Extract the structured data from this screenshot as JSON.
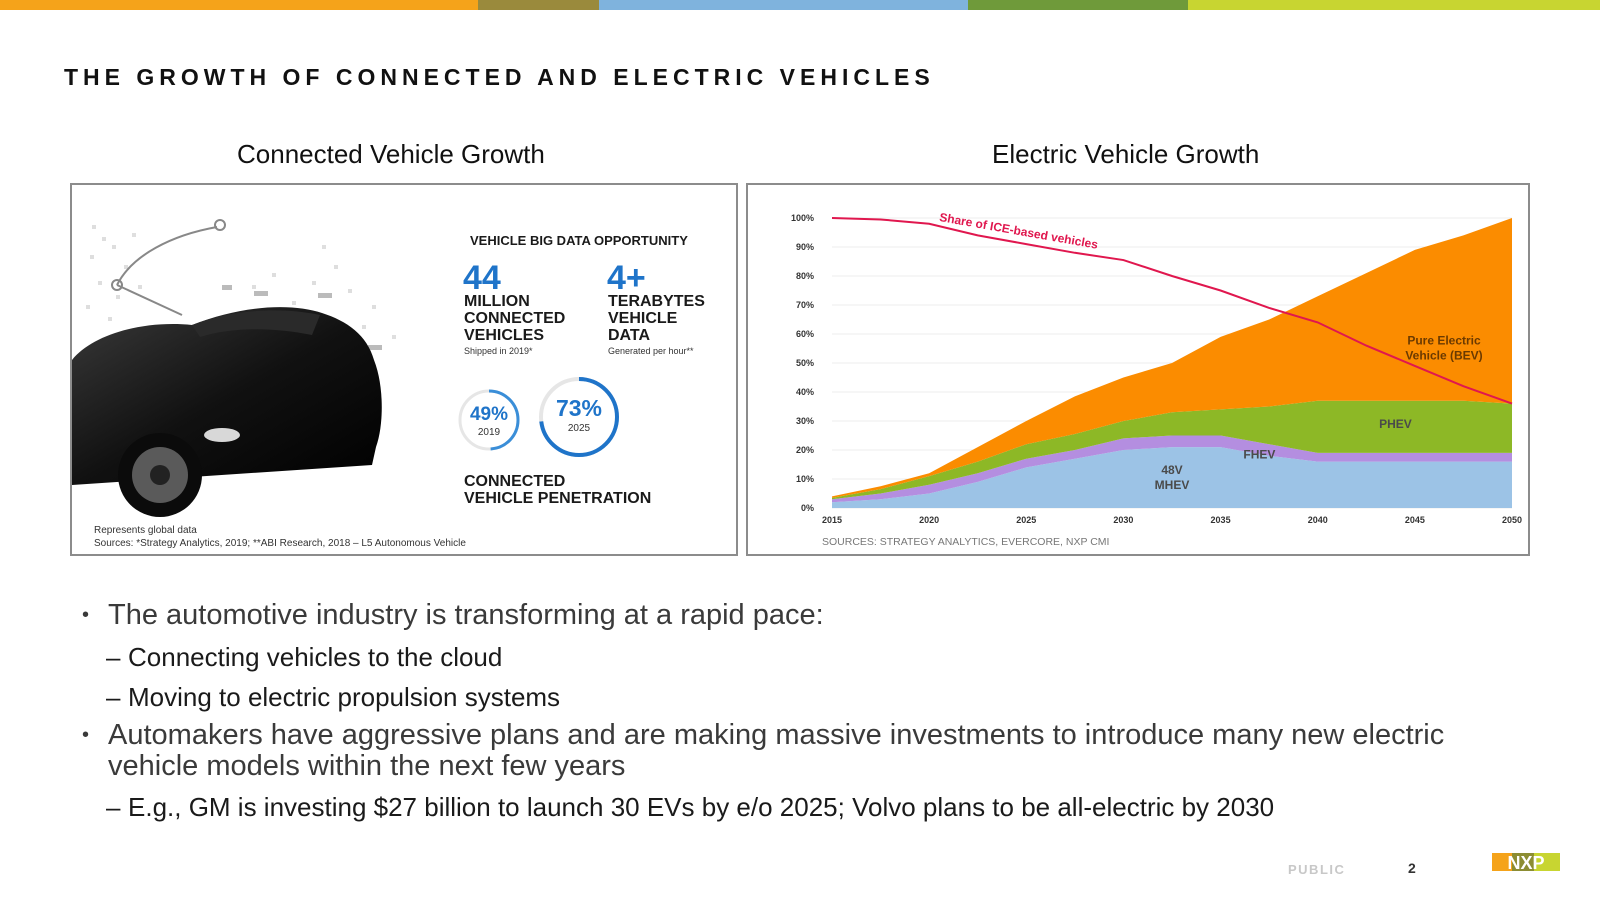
{
  "slide": {
    "title": "THE GROWTH OF CONNECTED AND ELECTRIC VEHICLES",
    "accent_colors": [
      "#f5a31a",
      "#9a8a3c",
      "#7fb3dd",
      "#6f9a3a",
      "#c8d531"
    ],
    "public_label": "PUBLIC",
    "page_number": "2",
    "logo_text": "NXP"
  },
  "left_panel": {
    "heading": "Connected Vehicle Growth",
    "image": "car-with-data-graphics",
    "big_data_heading": "VEHICLE BIG DATA OPPORTUNITY",
    "stat1": {
      "number": "44",
      "label_lines": [
        "MILLION",
        "CONNECTED",
        "VEHICLES"
      ],
      "note": "Shipped in 2019*"
    },
    "stat2": {
      "number": "4+",
      "label_lines": [
        "TERABYTES",
        "VEHICLE",
        "DATA"
      ],
      "note": "Generated per hour**"
    },
    "ring1": {
      "percent": "49%",
      "year": "2019",
      "fraction": 0.49
    },
    "ring2": {
      "percent": "73%",
      "year": "2025",
      "fraction": 0.73
    },
    "penetration_lines": [
      "CONNECTED",
      "VEHICLE PENETRATION"
    ],
    "footnote1": "Represents global data",
    "footnote2": "Sources:  *Strategy Analytics, 2019; **ABI Research, 2018 – L5 Autonomous Vehicle"
  },
  "right_panel": {
    "heading": "Electric Vehicle Growth",
    "source": "SOURCES: STRATEGY ANALYTICS, EVERCORE, NXP CMI"
  },
  "chart_data": {
    "type": "area",
    "stacked": true,
    "x": [
      2015,
      2017.5,
      2020,
      2022.5,
      2025,
      2027.5,
      2030,
      2032.5,
      2035,
      2037.5,
      2040,
      2042.5,
      2045,
      2047.5,
      2050
    ],
    "ylim": [
      0,
      100
    ],
    "y_ticks": [
      "0%",
      "10%",
      "20%",
      "30%",
      "40%",
      "50%",
      "60%",
      "70%",
      "80%",
      "90%",
      "100%"
    ],
    "x_ticks": [
      "2015",
      "2020",
      "2025",
      "2030",
      "2035",
      "2040",
      "2045",
      "2050"
    ],
    "grid": true,
    "series": [
      {
        "name": "48V MHEV",
        "label_lines": [
          "48V",
          "MHEV"
        ],
        "color": "#9cc3e6",
        "values": [
          2,
          3,
          5,
          9,
          14,
          17,
          20,
          21,
          21,
          18,
          16,
          16,
          16,
          16,
          16
        ]
      },
      {
        "name": "FHEV",
        "label_lines": [
          "FHEV"
        ],
        "color": "#b48ee0",
        "values": [
          1,
          2,
          3,
          3,
          3,
          3,
          4,
          4,
          4,
          4,
          3,
          3,
          3,
          3,
          3
        ]
      },
      {
        "name": "PHEV",
        "label_lines": [
          "PHEV"
        ],
        "color": "#8db826",
        "values": [
          0.5,
          1.5,
          3,
          4,
          5,
          5.5,
          6,
          8,
          9,
          13,
          18,
          18,
          18,
          18,
          17
        ]
      },
      {
        "name": "Pure Electric Vehicle (BEV)",
        "label_lines": [
          "Pure Electric",
          "Vehicle (BEV)"
        ],
        "color": "#fb8c00",
        "values": [
          0.5,
          1,
          1,
          5,
          8,
          13,
          15,
          17,
          25,
          30,
          36,
          44,
          52,
          57,
          64
        ]
      }
    ],
    "line": {
      "name": "Share of ICE-based vehicles",
      "color": "#e0174e",
      "values": [
        100,
        99.5,
        98,
        94,
        91,
        88,
        85.5,
        80,
        75,
        69,
        64,
        56,
        49,
        42,
        36
      ]
    }
  },
  "bullets": [
    {
      "level": 1,
      "text": "The automotive industry is transforming at a rapid pace:"
    },
    {
      "level": 2,
      "text": "Connecting vehicles to the cloud"
    },
    {
      "level": 2,
      "text": "Moving to electric propulsion systems"
    },
    {
      "level": 1,
      "text": "Automakers have aggressive plans and are making massive investments to introduce many new electric vehicle models within the next few years"
    },
    {
      "level": 2,
      "text": "E.g., GM is investing $27 billion to launch 30 EVs by e/o 2025; Volvo plans to be all-electric by 2030"
    }
  ]
}
